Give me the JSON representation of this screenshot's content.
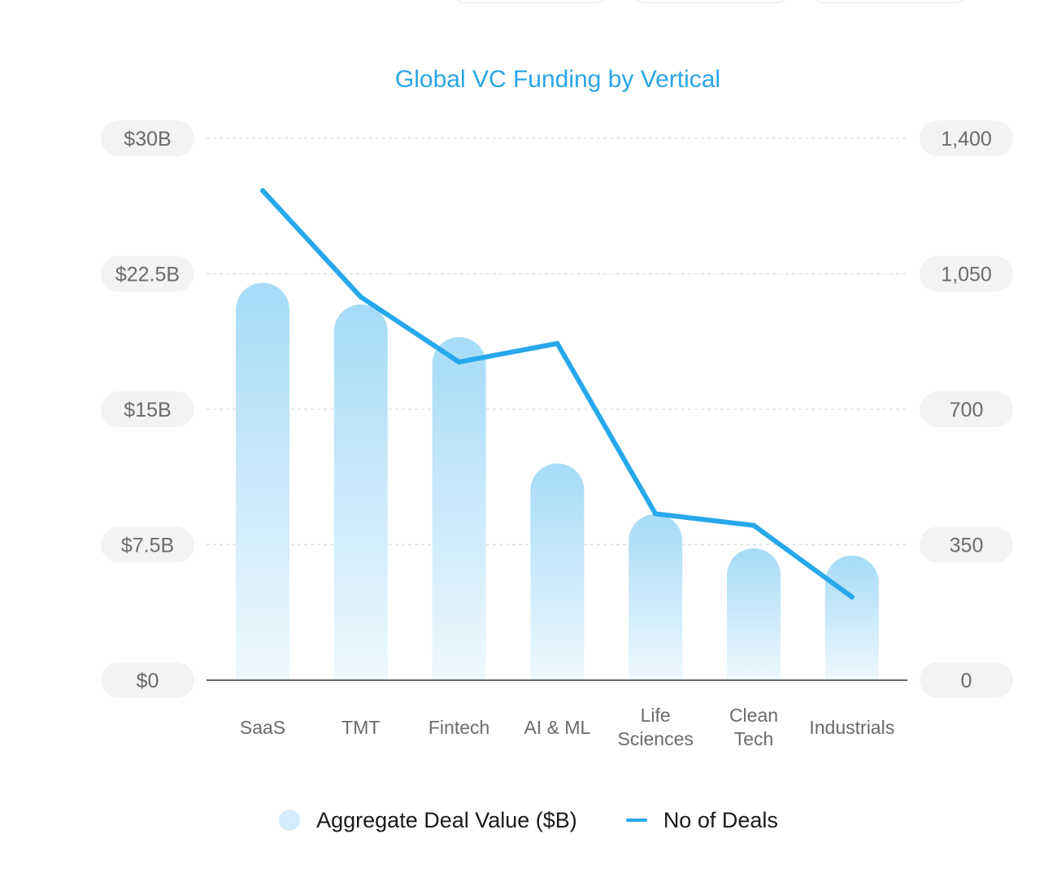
{
  "colors": {
    "title": "#2aa5e6",
    "line": "#27a8ec",
    "bar_top": "#a6dbf8",
    "bar_bottom": "#eef8fe",
    "tick_pill": "#f3f3f4",
    "tick_text": "#6b6b6b",
    "grid": "#dcdcdc",
    "axis": "#333333",
    "legend_swatch": "#d4ecfb"
  },
  "chart_data": {
    "type": "bar",
    "title": "Global VC Funding by Vertical",
    "categories": [
      "SaaS",
      "TMT",
      "Fintech",
      "AI & ML",
      "Life Sciences",
      "Clean Tech",
      "Industrials"
    ],
    "category_lines": [
      [
        "SaaS"
      ],
      [
        "TMT"
      ],
      [
        "Fintech"
      ],
      [
        "AI & ML"
      ],
      [
        "Life",
        "Sciences"
      ],
      [
        "Clean",
        "Tech"
      ],
      [
        "Industrials"
      ]
    ],
    "series": [
      {
        "name": "Aggregate Deal Value ($B)",
        "type": "bar",
        "axis": "left",
        "values": [
          22,
          20.8,
          19,
          12,
          9.2,
          7.3,
          6.9
        ]
      },
      {
        "name": "No of Deals",
        "type": "line",
        "axis": "right",
        "values": [
          1265,
          990,
          822,
          870,
          430,
          400,
          215
        ]
      }
    ],
    "y_left": {
      "ticks": [
        0,
        7.5,
        15,
        22.5,
        30
      ],
      "tick_labels": [
        "$0",
        "$7.5B",
        "$15B",
        "$22.5B",
        "$30B"
      ],
      "ylim": [
        0,
        30
      ]
    },
    "y_right": {
      "ticks": [
        0,
        350,
        700,
        1050,
        1400
      ],
      "tick_labels": [
        "0",
        "350",
        "700",
        "1,050",
        "1,400"
      ],
      "ylim": [
        0,
        1400
      ]
    },
    "grid": true,
    "legend_position": "bottom-center"
  },
  "legend": {
    "items": [
      {
        "label": "Aggregate Deal Value ($B)"
      },
      {
        "label": "No of Deals"
      }
    ]
  }
}
